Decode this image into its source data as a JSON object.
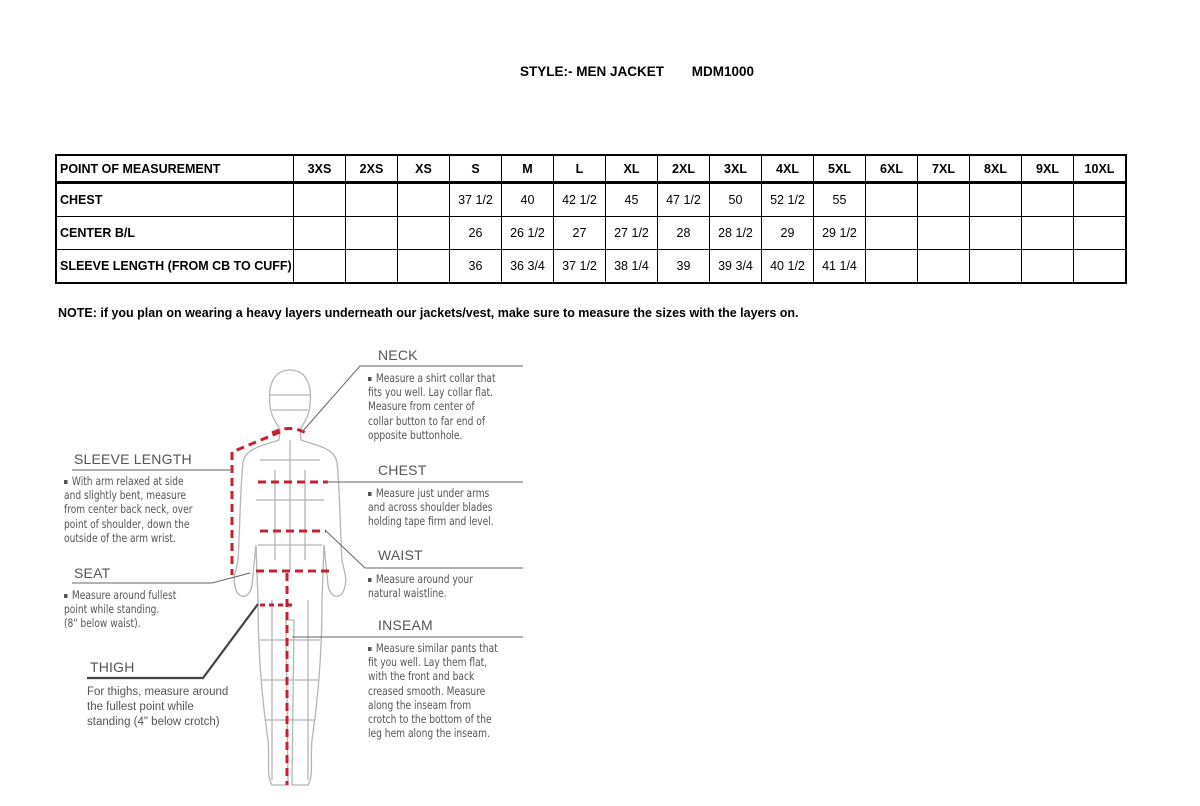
{
  "title": {
    "style": "STYLE:- MEN JACKET",
    "code": "MDM1000"
  },
  "table": {
    "headers": [
      "POINT OF MEASUREMENT",
      "3XS",
      "2XS",
      "XS",
      "S",
      "M",
      "L",
      "XL",
      "2XL",
      "3XL",
      "4XL",
      "5XL",
      "6XL",
      "7XL",
      "8XL",
      "9XL",
      "10XL"
    ],
    "rows": [
      [
        "CHEST",
        "",
        "",
        "",
        "37 1/2",
        "40",
        "42 1/2",
        "45",
        "47 1/2",
        "50",
        "52 1/2",
        "55",
        "",
        "",
        "",
        "",
        ""
      ],
      [
        "CENTER B/L",
        "",
        "",
        "",
        "26",
        "26 1/2",
        "27",
        "27 1/2",
        "28",
        "28 1/2",
        "29",
        "29 1/2",
        "",
        "",
        "",
        "",
        ""
      ],
      [
        "SLEEVE LENGTH (FROM CB TO CUFF)",
        "",
        "",
        "",
        "36",
        "36 3/4",
        "37 1/2",
        "38 1/4",
        "39",
        "39 3/4",
        "40 1/2",
        "41 1/4",
        "",
        "",
        "",
        "",
        ""
      ]
    ]
  },
  "note": "NOTE: if you plan on wearing a heavy layers underneath our jackets/vest, make sure to measure the sizes with the layers on.",
  "guide": {
    "neck": {
      "label": "NECK",
      "text": "Measure a shirt collar that\nfits you well. Lay collar flat.\nMeasure from center of\ncollar button to far end of\nopposite buttonhole."
    },
    "sleeve": {
      "label": "SLEEVE LENGTH",
      "text": "With arm relaxed at side\nand slightly bent, measure\nfrom center back neck, over\npoint of shoulder, down the\noutside of the arm wrist."
    },
    "chest": {
      "label": "CHEST",
      "text": "Measure just under arms\nand across shoulder blades\nholding tape firm and level."
    },
    "seat": {
      "label": "SEAT",
      "text": "Measure around fullest\npoint while standing.\n(8\" below waist)."
    },
    "waist": {
      "label": "WAIST",
      "text": "Measure around your\nnatural waistline."
    },
    "thigh": {
      "label": "THIGH",
      "text": "For thighs, measure around\nthe fullest point while\nstanding (4\" below crotch)"
    },
    "inseam": {
      "label": "INSEAM",
      "text": "Measure similar pants that\nfit you well. Lay them flat,\nwith the front and back\ncreased smooth. Measure\nalong the inseam from\ncrotch to the bottom of the\nleg hem along the inseam."
    }
  },
  "colors": {
    "measure_line": "#c8202f",
    "figure": "#b5b5b5",
    "text": "#555555"
  }
}
